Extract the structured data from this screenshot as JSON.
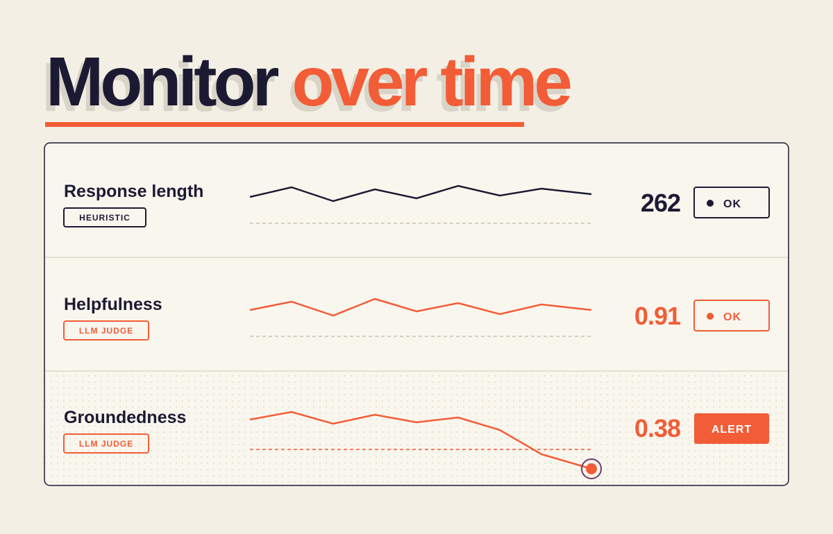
{
  "header": {
    "title_dark": "Monitor",
    "title_accent": "over time"
  },
  "metrics": [
    {
      "name": "Response length",
      "badge": "HEURISTIC",
      "value": 262,
      "status": "OK"
    },
    {
      "name": "Helpfulness",
      "badge": "LLM JUDGE",
      "value": 0.91,
      "status": "OK"
    },
    {
      "name": "Groundedness",
      "badge": "LLM JUDGE",
      "value": 0.38,
      "status": "ALERT"
    }
  ]
}
